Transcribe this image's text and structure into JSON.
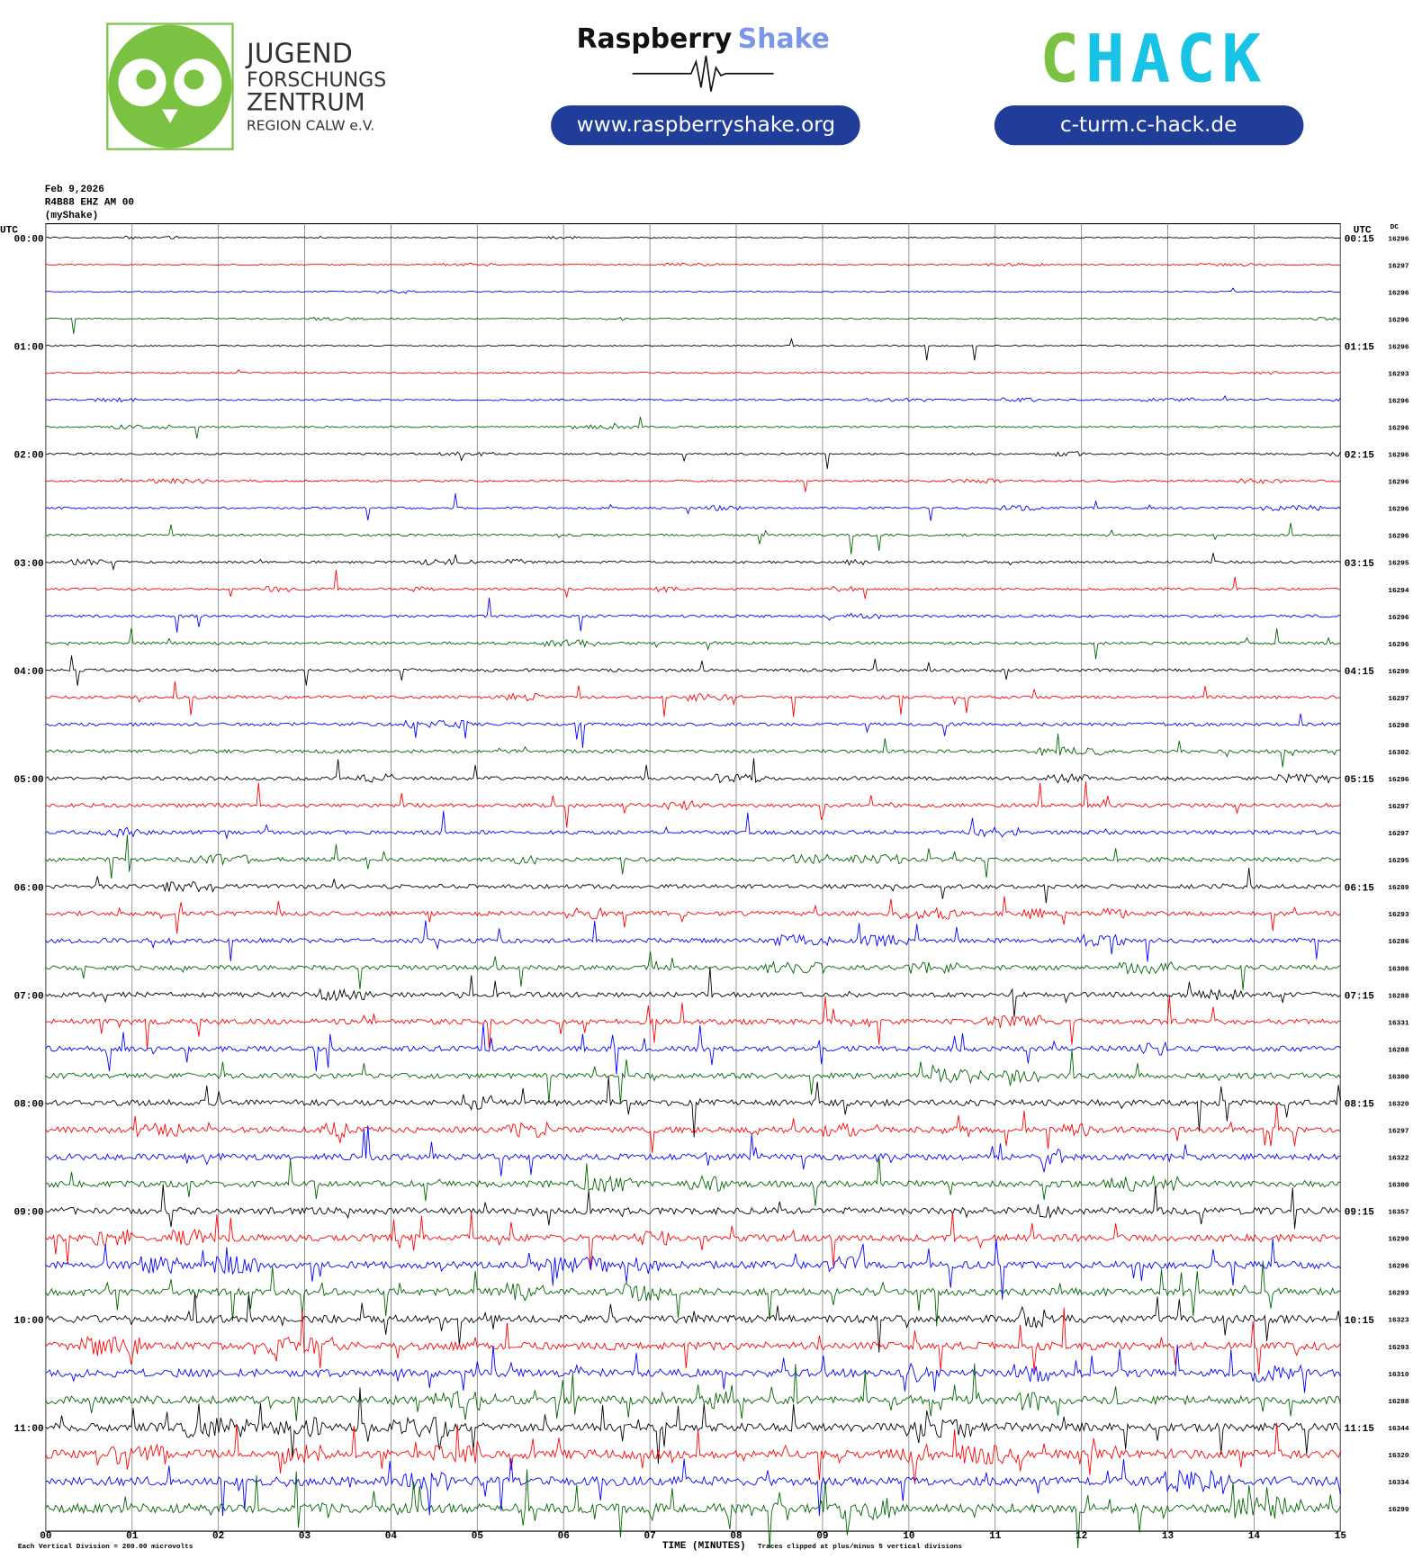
{
  "logos": {
    "jfz": [
      "JUGEND",
      "FORSCHUNGS",
      "ZENTRUM",
      "REGION CALW e.V."
    ],
    "raspberry": "Raspberry",
    "shake": "Shake",
    "raspberry_url": "www.raspberryshake.org",
    "chack": "CHACK",
    "chack_url": "c-turm.c-hack.de"
  },
  "header": {
    "date": "Feb 9,2026",
    "station": "R4B88 EHZ AM 00",
    "source": "(myShake)",
    "utc_left": "UTC",
    "utc_right": "UTC",
    "dc": "DC"
  },
  "helicorder": {
    "left_times": [
      "00:00",
      "01:00",
      "02:00",
      "03:00",
      "04:00",
      "05:00",
      "06:00",
      "07:00",
      "08:00",
      "09:00",
      "10:00",
      "11:00"
    ],
    "right_times": [
      "00:15",
      "01:15",
      "02:15",
      "03:15",
      "04:15",
      "05:15",
      "06:15",
      "07:15",
      "08:15",
      "09:15",
      "10:15",
      "11:15"
    ],
    "dc_values": [
      16296,
      16297,
      16296,
      16296,
      16296,
      16293,
      16296,
      16296,
      16296,
      16296,
      16296,
      16296,
      16295,
      16294,
      16296,
      16296,
      16299,
      16297,
      16298,
      16302,
      16296,
      16297,
      16297,
      16295,
      16289,
      16293,
      16286,
      16308,
      16288,
      16331,
      16288,
      16300,
      16320,
      16297,
      16322,
      16300,
      16357,
      16290,
      16296,
      16293,
      16323,
      16293,
      16310,
      16288,
      16344,
      16320,
      16334,
      16299
    ],
    "x_labels": [
      "00",
      "01",
      "02",
      "03",
      "04",
      "05",
      "06",
      "07",
      "08",
      "09",
      "10",
      "11",
      "12",
      "13",
      "14",
      "15"
    ],
    "trace_colors": [
      "#000000",
      "#ff0000",
      "#0000ff",
      "#006400"
    ]
  },
  "footer": {
    "scale": "Each Vertical Division =  200.00 microvolts",
    "axis_title": "TIME (MINUTES)",
    "clip": "Traces clipped at plus/minus 5 vertical divisions"
  }
}
